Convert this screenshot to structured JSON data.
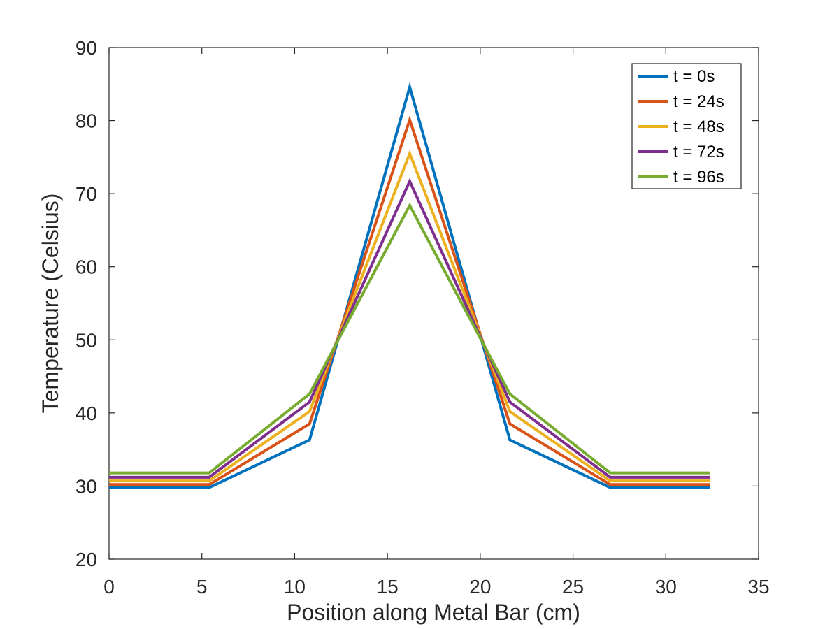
{
  "chart_data": {
    "type": "line",
    "title": "",
    "xlabel": "Position along Metal Bar (cm)",
    "ylabel": "Temperature (Celsius)",
    "xlim": [
      0,
      35
    ],
    "ylim": [
      20,
      90
    ],
    "xticks": [
      0,
      5,
      10,
      15,
      20,
      25,
      30,
      35
    ],
    "yticks": [
      20,
      30,
      40,
      50,
      60,
      70,
      80,
      90
    ],
    "grid": false,
    "legend_position": "top-right",
    "x": [
      0,
      5.4,
      10.8,
      16.2,
      21.6,
      27.0,
      32.4
    ],
    "series": [
      {
        "name": "t = 0s",
        "color": "#0072BD",
        "values": [
          29.8,
          29.8,
          36.3,
          84.6,
          36.3,
          29.8,
          29.8
        ]
      },
      {
        "name": "t = 24s",
        "color": "#D95319",
        "values": [
          30.2,
          30.2,
          38.5,
          80.1,
          38.5,
          30.2,
          30.2
        ]
      },
      {
        "name": "t = 48s",
        "color": "#EDB120",
        "values": [
          30.7,
          30.7,
          40.2,
          75.5,
          40.2,
          30.7,
          30.7
        ]
      },
      {
        "name": "t = 72s",
        "color": "#7E2F8E",
        "values": [
          31.2,
          31.2,
          41.5,
          71.7,
          41.5,
          31.2,
          31.2
        ]
      },
      {
        "name": "t = 96s",
        "color": "#77AC30",
        "values": [
          31.8,
          31.8,
          42.6,
          68.4,
          42.6,
          31.8,
          31.8
        ]
      }
    ]
  }
}
